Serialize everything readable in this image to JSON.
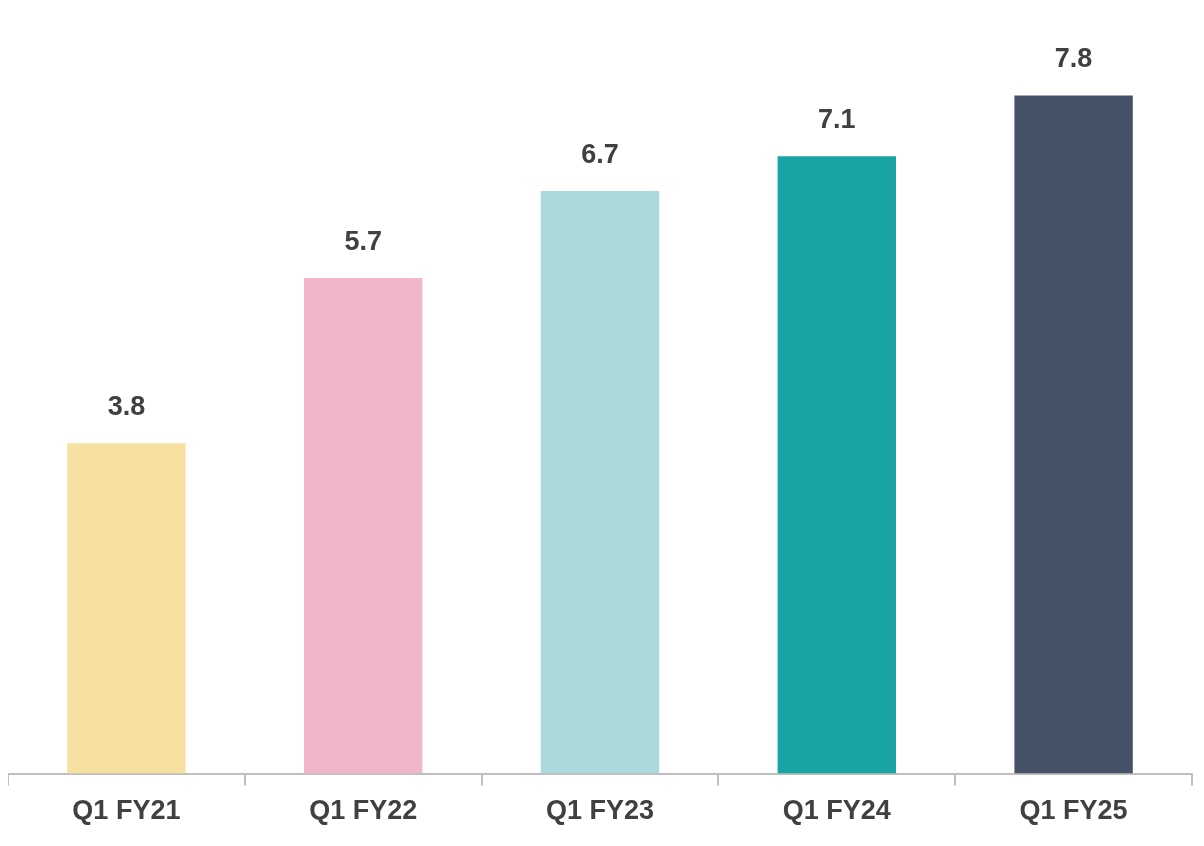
{
  "chart_data": {
    "type": "bar",
    "categories": [
      "Q1 FY21",
      "Q1 FY22",
      "Q1 FY23",
      "Q1 FY24",
      "Q1 FY25"
    ],
    "values": [
      3.8,
      5.7,
      6.7,
      7.1,
      7.8
    ],
    "colors": [
      "#f7e1a1",
      "#f1b6ca",
      "#acd9dc",
      "#19a5a5",
      "#465268"
    ],
    "data_labels": true,
    "grid": false,
    "legend": false
  }
}
